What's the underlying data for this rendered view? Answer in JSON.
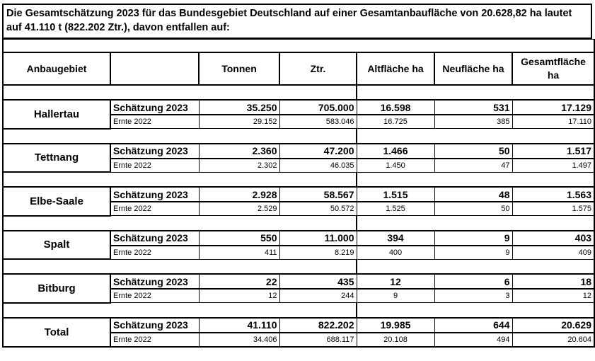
{
  "title": "Die Gesamtschätzung 2023 für das Bundesgebiet Deutschland auf einer Gesamtanbaufläche von 20.628,82 ha lautet auf 41.110 t (822.202 Ztr.), davon entfallen auf:",
  "headers": {
    "region": "Anbaugebiet",
    "type": "",
    "tonnen": "Tonnen",
    "ztr": "Ztr.",
    "alt": "Altfläche ha",
    "neu": "Neufläche ha",
    "gesamt": "Gesamtfläche ha"
  },
  "row_labels": {
    "estimate": "Schätzung 2023",
    "previous": "Ernte 2022"
  },
  "regions": [
    {
      "name": "Hallertau",
      "estimate": [
        "35.250",
        "705.000",
        "16.598",
        "531",
        "17.129"
      ],
      "previous": [
        "29.152",
        "583.046",
        "16.725",
        "385",
        "17.110"
      ]
    },
    {
      "name": "Tettnang",
      "estimate": [
        "2.360",
        "47.200",
        "1.466",
        "50",
        "1.517"
      ],
      "previous": [
        "2.302",
        "46.035",
        "1.450",
        "47",
        "1.497"
      ]
    },
    {
      "name": "Elbe-Saale",
      "estimate": [
        "2.928",
        "58.567",
        "1.515",
        "48",
        "1.563"
      ],
      "previous": [
        "2.529",
        "50.572",
        "1.525",
        "50",
        "1.575"
      ]
    },
    {
      "name": "Spalt",
      "estimate": [
        "550",
        "11.000",
        "394",
        "9",
        "403"
      ],
      "previous": [
        "411",
        "8.219",
        "400",
        "9",
        "409"
      ]
    },
    {
      "name": "Bitburg",
      "estimate": [
        "22",
        "435",
        "12",
        "6",
        "18"
      ],
      "previous": [
        "12",
        "244",
        "9",
        "3",
        "12"
      ]
    },
    {
      "name": "Total",
      "estimate": [
        "41.110",
        "822.202",
        "19.985",
        "644",
        "20.629"
      ],
      "previous": [
        "34.406",
        "688.117",
        "20.108",
        "494",
        "20.604"
      ]
    }
  ]
}
